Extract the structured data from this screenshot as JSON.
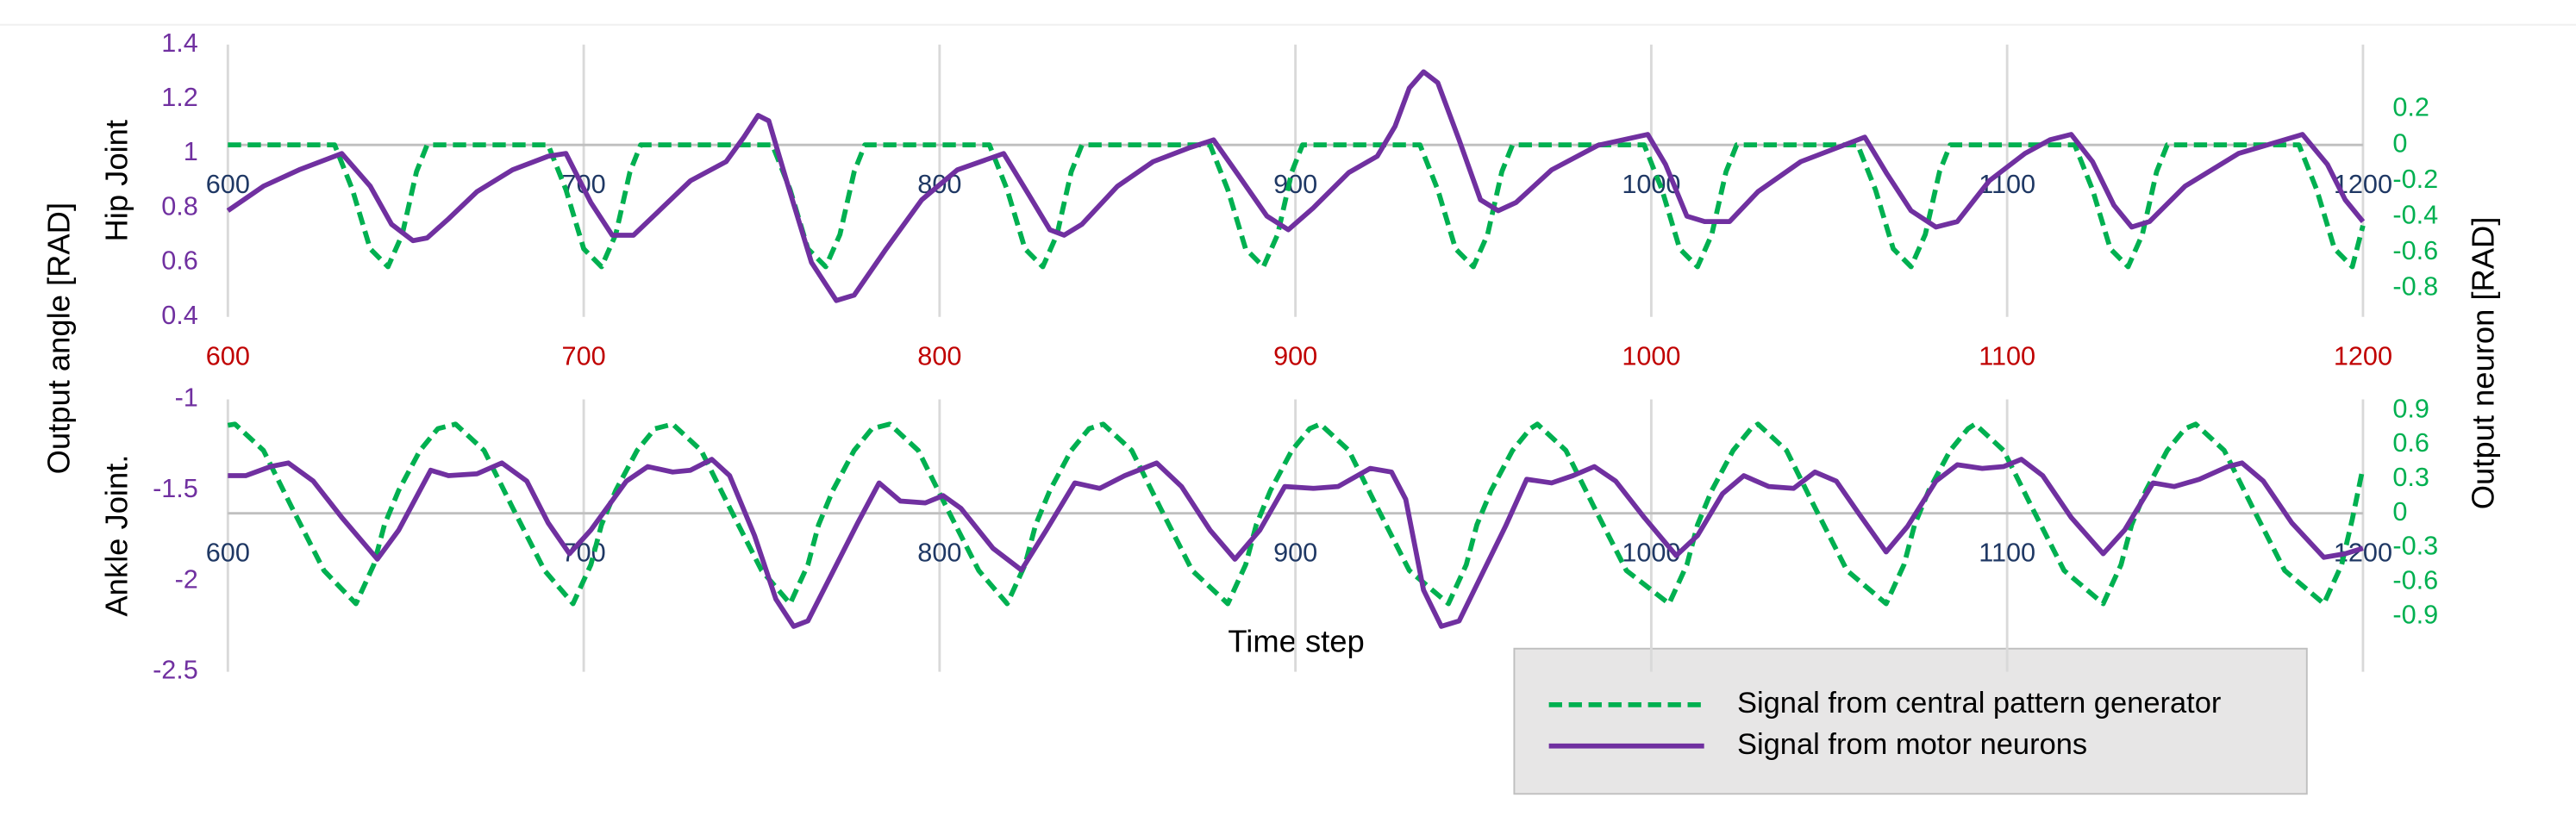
{
  "figure": {
    "ylabel": "Output angle [RAD]",
    "y2label": "Output neuron [RAD]",
    "xlabel": "Time step"
  },
  "chart_data": [
    {
      "type": "line",
      "ylabel": "Hip Joint",
      "xlim": [
        600,
        1200
      ],
      "xticks": [
        600,
        700,
        800,
        900,
        1000,
        1100,
        1200
      ],
      "xtick_color": "#1f3864",
      "x2ticks": [
        600,
        700,
        800,
        900,
        1000,
        1100,
        1200
      ],
      "x2tick_color": "#c00000",
      "ylim": [
        0.4,
        1.4
      ],
      "yticks": [
        0.4,
        0.6,
        0.8,
        1,
        1.2,
        1.4
      ],
      "ytick_color": "#7030a0",
      "y2lim": [
        -0.96,
        0.56
      ],
      "y2ticks": [
        -0.8,
        -0.6,
        -0.4,
        -0.2,
        0,
        0.2
      ],
      "y2tick_color": "#00b050",
      "grid": "x",
      "series": [
        {
          "name": "Signal from central pattern generator",
          "color": "#00b050",
          "line_style": "dashed",
          "axis": "y2",
          "x": [
            600,
            630,
            635,
            640,
            645,
            649,
            653,
            656,
            690,
            695,
            700,
            705,
            709,
            713,
            716,
            753,
            758,
            763,
            768,
            772,
            776,
            779,
            814,
            819,
            824,
            829,
            833,
            837,
            840,
            876,
            881,
            886,
            891,
            895,
            899,
            902,
            935,
            940,
            945,
            950,
            954,
            958,
            961,
            998,
            1003,
            1008,
            1013,
            1017,
            1021,
            1024,
            1058,
            1063,
            1068,
            1073,
            1077,
            1081,
            1084,
            1119,
            1124,
            1129,
            1134,
            1138,
            1142,
            1145,
            1182,
            1187,
            1192,
            1197,
            1200
          ],
          "values": [
            0,
            0,
            -0.25,
            -0.58,
            -0.68,
            -0.5,
            -0.15,
            0,
            0,
            -0.25,
            -0.58,
            -0.68,
            -0.5,
            -0.15,
            0,
            0,
            -0.25,
            -0.58,
            -0.68,
            -0.5,
            -0.15,
            0,
            0,
            -0.25,
            -0.58,
            -0.68,
            -0.5,
            -0.15,
            0,
            0,
            -0.25,
            -0.58,
            -0.68,
            -0.5,
            -0.15,
            0,
            0,
            -0.25,
            -0.58,
            -0.68,
            -0.5,
            -0.15,
            0,
            0,
            -0.25,
            -0.58,
            -0.68,
            -0.5,
            -0.15,
            0,
            0,
            -0.25,
            -0.58,
            -0.68,
            -0.5,
            -0.15,
            0,
            0,
            -0.25,
            -0.58,
            -0.68,
            -0.5,
            -0.15,
            0,
            0,
            -0.25,
            -0.58,
            -0.68,
            -0.45
          ]
        },
        {
          "name": "Signal from motor neurons",
          "color": "#7030a0",
          "line_style": "solid",
          "axis": "y",
          "x": [
            600,
            610,
            620,
            632,
            640,
            646,
            652,
            656,
            662,
            670,
            680,
            690,
            695,
            702,
            708,
            714,
            722,
            730,
            740,
            745,
            749,
            752,
            757,
            764,
            771,
            776,
            785,
            795,
            805,
            818,
            825,
            831,
            835,
            840,
            850,
            860,
            870,
            877,
            884,
            892,
            898,
            905,
            915,
            923,
            928,
            932,
            936,
            940,
            946,
            952,
            957,
            962,
            972,
            985,
            999,
            1004,
            1010,
            1015,
            1022,
            1030,
            1042,
            1060,
            1066,
            1073,
            1080,
            1086,
            1095,
            1105,
            1112,
            1118,
            1124,
            1130,
            1135,
            1140,
            1150,
            1165,
            1183,
            1190,
            1195,
            1200
          ],
          "values": [
            0.79,
            0.88,
            0.94,
            1.0,
            0.88,
            0.74,
            0.68,
            0.69,
            0.76,
            0.86,
            0.94,
            0.99,
            1.0,
            0.82,
            0.7,
            0.7,
            0.8,
            0.9,
            0.97,
            1.06,
            1.14,
            1.12,
            0.9,
            0.6,
            0.46,
            0.48,
            0.65,
            0.83,
            0.94,
            1.0,
            0.85,
            0.72,
            0.7,
            0.74,
            0.88,
            0.97,
            1.02,
            1.05,
            0.92,
            0.77,
            0.72,
            0.8,
            0.93,
            0.99,
            1.1,
            1.24,
            1.3,
            1.26,
            1.05,
            0.83,
            0.79,
            0.82,
            0.94,
            1.03,
            1.07,
            0.96,
            0.77,
            0.75,
            0.75,
            0.86,
            0.97,
            1.06,
            0.93,
            0.79,
            0.73,
            0.75,
            0.9,
            1.0,
            1.05,
            1.07,
            0.97,
            0.81,
            0.73,
            0.75,
            0.88,
            1.0,
            1.07,
            0.96,
            0.83,
            0.75
          ]
        }
      ]
    },
    {
      "type": "line",
      "ylabel": "Ankle Joint.",
      "xlim": [
        600,
        1200
      ],
      "xticks": [
        600,
        700,
        800,
        900,
        1000,
        1100,
        1200
      ],
      "xtick_color": "#1f3864",
      "ylim": [
        -2.5,
        -1
      ],
      "yticks": [
        -2.5,
        -2,
        -1.5,
        -1
      ],
      "ytick_color": "#7030a0",
      "y2lim": [
        -1.385,
        0.996
      ],
      "y2ticks": [
        -0.9,
        -0.6,
        -0.3,
        0,
        0.3,
        0.6,
        0.9
      ],
      "y2tick_color": "#00b050",
      "grid": "x",
      "series": [
        {
          "color": "#00b050",
          "line_style": "dashed",
          "axis": "y2",
          "x": [
            600,
            602,
            610,
            618,
            627,
            636,
            641,
            644,
            648,
            654,
            659,
            664,
            672,
            680,
            689,
            697,
            702,
            705,
            709,
            715,
            720,
            725,
            733,
            741,
            750,
            758,
            763,
            766,
            770,
            776,
            781,
            786,
            794,
            802,
            811,
            819,
            824,
            827,
            831,
            837,
            842,
            846,
            854,
            862,
            871,
            881,
            886,
            889,
            893,
            899,
            904,
            907,
            915,
            923,
            932,
            943,
            948,
            951,
            955,
            961,
            966,
            968,
            976,
            984,
            993,
            1005,
            1010,
            1013,
            1017,
            1023,
            1028,
            1030,
            1038,
            1046,
            1055,
            1066,
            1071,
            1074,
            1078,
            1084,
            1089,
            1091,
            1099,
            1107,
            1116,
            1127,
            1132,
            1135,
            1139,
            1145,
            1150,
            1153,
            1161,
            1169,
            1178,
            1189,
            1194,
            1197,
            1200
          ],
          "values": [
            0.77,
            0.78,
            0.55,
            0.05,
            -0.5,
            -0.79,
            -0.45,
            -0.1,
            0.2,
            0.55,
            0.74,
            0.78,
            0.55,
            0.05,
            -0.5,
            -0.79,
            -0.45,
            -0.1,
            0.2,
            0.55,
            0.74,
            0.78,
            0.55,
            0.05,
            -0.5,
            -0.79,
            -0.45,
            -0.1,
            0.2,
            0.55,
            0.74,
            0.78,
            0.55,
            0.05,
            -0.5,
            -0.79,
            -0.45,
            -0.1,
            0.2,
            0.55,
            0.74,
            0.78,
            0.55,
            0.05,
            -0.5,
            -0.79,
            -0.45,
            -0.1,
            0.2,
            0.55,
            0.74,
            0.78,
            0.55,
            0.05,
            -0.5,
            -0.79,
            -0.45,
            -0.1,
            0.2,
            0.55,
            0.74,
            0.78,
            0.55,
            0.05,
            -0.5,
            -0.79,
            -0.45,
            -0.1,
            0.2,
            0.55,
            0.74,
            0.78,
            0.55,
            0.05,
            -0.5,
            -0.79,
            -0.45,
            -0.1,
            0.2,
            0.55,
            0.74,
            0.78,
            0.55,
            0.05,
            -0.5,
            -0.79,
            -0.45,
            -0.1,
            0.2,
            0.55,
            0.74,
            0.78,
            0.55,
            0.05,
            -0.5,
            -0.79,
            -0.45,
            -0.05,
            0.4
          ]
        },
        {
          "color": "#7030a0",
          "line_style": "solid",
          "axis": "y",
          "x": [
            600,
            605,
            612,
            617,
            624,
            632,
            642,
            648,
            657,
            662,
            670,
            677,
            684,
            690,
            696,
            702,
            712,
            718,
            725,
            730,
            736,
            741,
            748,
            754,
            759,
            763,
            770,
            777,
            783,
            789,
            796,
            801,
            806,
            815,
            823,
            830,
            838,
            845,
            852,
            861,
            868,
            876,
            883,
            890,
            897,
            905,
            912,
            921,
            927,
            931,
            936,
            941,
            946,
            952,
            959,
            965,
            972,
            978,
            984,
            990,
            998,
            1007,
            1013,
            1020,
            1026,
            1033,
            1040,
            1046,
            1052,
            1058,
            1066,
            1072,
            1080,
            1086,
            1093,
            1099,
            1104,
            1110,
            1118,
            1127,
            1133,
            1141,
            1147,
            1154,
            1162,
            1166,
            1172,
            1180,
            1189,
            1195,
            1200
          ],
          "values": [
            -1.42,
            -1.42,
            -1.37,
            -1.35,
            -1.45,
            -1.65,
            -1.88,
            -1.72,
            -1.39,
            -1.42,
            -1.41,
            -1.35,
            -1.45,
            -1.68,
            -1.85,
            -1.72,
            -1.45,
            -1.37,
            -1.4,
            -1.39,
            -1.33,
            -1.42,
            -1.75,
            -2.1,
            -2.25,
            -2.22,
            -1.95,
            -1.68,
            -1.46,
            -1.56,
            -1.57,
            -1.53,
            -1.6,
            -1.82,
            -1.94,
            -1.72,
            -1.46,
            -1.49,
            -1.42,
            -1.35,
            -1.48,
            -1.72,
            -1.88,
            -1.72,
            -1.48,
            -1.49,
            -1.48,
            -1.38,
            -1.4,
            -1.55,
            -2.05,
            -2.25,
            -2.22,
            -1.98,
            -1.7,
            -1.44,
            -1.46,
            -1.42,
            -1.37,
            -1.45,
            -1.65,
            -1.86,
            -1.75,
            -1.52,
            -1.42,
            -1.48,
            -1.49,
            -1.4,
            -1.45,
            -1.62,
            -1.84,
            -1.7,
            -1.45,
            -1.36,
            -1.38,
            -1.37,
            -1.33,
            -1.42,
            -1.65,
            -1.85,
            -1.72,
            -1.46,
            -1.48,
            -1.44,
            -1.37,
            -1.35,
            -1.45,
            -1.68,
            -1.87,
            -1.85,
            -1.82
          ]
        }
      ]
    }
  ]
}
